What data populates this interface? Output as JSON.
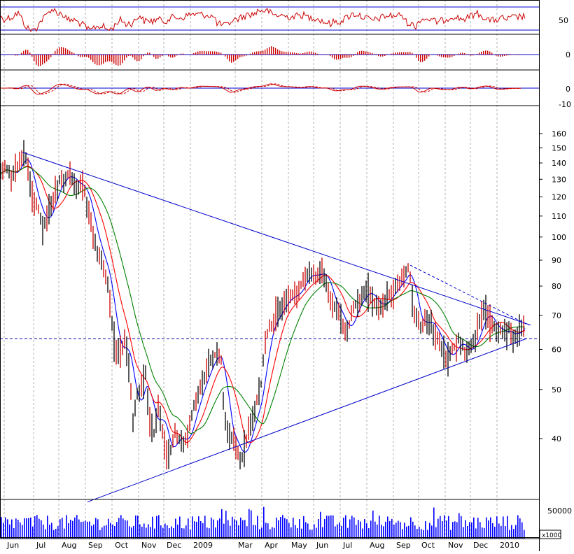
{
  "chart_data": {
    "type": "line",
    "price_axis_labels": [
      160,
      150,
      140,
      130,
      120,
      110,
      100,
      90,
      80,
      70,
      60,
      50,
      40
    ],
    "rsi_axis_labels": [
      50
    ],
    "macd_hist_axis_labels": [
      0
    ],
    "macd_axis_labels": [
      0,
      -10
    ],
    "volume_axis_label": "50000",
    "volume_unit_label": "x1000",
    "x_tick_labels": [
      "Jun",
      "Jul",
      "Aug",
      "Sep",
      "Oct",
      "Nov",
      "Dec",
      "2009",
      "Mar",
      "Apr",
      "May",
      "Jun",
      "Jul",
      "Aug",
      "Sep",
      "Oct",
      "Nov",
      "Dec",
      "2010"
    ],
    "horizontal_reference_level": 63,
    "closes": [
      [
        0,
        133
      ],
      [
        8,
        138
      ],
      [
        16,
        131
      ],
      [
        24,
        137
      ],
      [
        32,
        146
      ],
      [
        38,
        142
      ],
      [
        44,
        124
      ],
      [
        50,
        117
      ],
      [
        56,
        113
      ],
      [
        62,
        104
      ],
      [
        68,
        111
      ],
      [
        74,
        118
      ],
      [
        80,
        124
      ],
      [
        86,
        131
      ],
      [
        92,
        130
      ],
      [
        98,
        134
      ],
      [
        104,
        129
      ],
      [
        110,
        125
      ],
      [
        116,
        128
      ],
      [
        120,
        124
      ],
      [
        126,
        112
      ],
      [
        132,
        104
      ],
      [
        138,
        94
      ],
      [
        144,
        91
      ],
      [
        150,
        86
      ],
      [
        156,
        76
      ],
      [
        162,
        63
      ],
      [
        168,
        59
      ],
      [
        174,
        60
      ],
      [
        178,
        63
      ],
      [
        182,
        58
      ],
      [
        186,
        52
      ],
      [
        190,
        43
      ],
      [
        196,
        49
      ],
      [
        202,
        50
      ],
      [
        208,
        54
      ],
      [
        214,
        43
      ],
      [
        220,
        41
      ],
      [
        226,
        47
      ],
      [
        232,
        42
      ],
      [
        238,
        37
      ],
      [
        244,
        38
      ],
      [
        250,
        41
      ],
      [
        256,
        40
      ],
      [
        262,
        39
      ],
      [
        268,
        41
      ],
      [
        274,
        44
      ],
      [
        280,
        48
      ],
      [
        286,
        50
      ],
      [
        292,
        53
      ],
      [
        298,
        56
      ],
      [
        304,
        58
      ],
      [
        310,
        59
      ],
      [
        316,
        57
      ],
      [
        320,
        44
      ],
      [
        326,
        41
      ],
      [
        332,
        40
      ],
      [
        338,
        38
      ],
      [
        344,
        36
      ],
      [
        350,
        39
      ],
      [
        356,
        42
      ],
      [
        362,
        44
      ],
      [
        368,
        48
      ],
      [
        374,
        52
      ],
      [
        378,
        62
      ],
      [
        384,
        66
      ],
      [
        390,
        68
      ],
      [
        396,
        71
      ],
      [
        402,
        73
      ],
      [
        408,
        75
      ],
      [
        414,
        77
      ],
      [
        420,
        76
      ],
      [
        426,
        78
      ],
      [
        432,
        82
      ],
      [
        438,
        84
      ],
      [
        444,
        85
      ],
      [
        450,
        83
      ],
      [
        456,
        85
      ],
      [
        462,
        86
      ],
      [
        468,
        78
      ],
      [
        474,
        74
      ],
      [
        480,
        72
      ],
      [
        486,
        70
      ],
      [
        490,
        67
      ],
      [
        494,
        64
      ],
      [
        500,
        68
      ],
      [
        506,
        73
      ],
      [
        512,
        74
      ],
      [
        518,
        77
      ],
      [
        524,
        79
      ],
      [
        530,
        76
      ],
      [
        536,
        74
      ],
      [
        542,
        73
      ],
      [
        548,
        74
      ],
      [
        554,
        76
      ],
      [
        560,
        78
      ],
      [
        566,
        80
      ],
      [
        572,
        82
      ],
      [
        578,
        84
      ],
      [
        584,
        88
      ],
      [
        590,
        72
      ],
      [
        596,
        69
      ],
      [
        602,
        66
      ],
      [
        608,
        69
      ],
      [
        614,
        68
      ],
      [
        620,
        65
      ],
      [
        626,
        63
      ],
      [
        632,
        60
      ],
      [
        638,
        57
      ],
      [
        644,
        59
      ],
      [
        650,
        61
      ],
      [
        656,
        63
      ],
      [
        662,
        60
      ],
      [
        668,
        59
      ],
      [
        674,
        61
      ],
      [
        680,
        64
      ],
      [
        686,
        68
      ],
      [
        692,
        72
      ],
      [
        698,
        69
      ],
      [
        704,
        67
      ],
      [
        710,
        65
      ],
      [
        716,
        66
      ],
      [
        722,
        64
      ],
      [
        728,
        66
      ],
      [
        734,
        63
      ],
      [
        740,
        65
      ],
      [
        744,
        67
      ],
      [
        748,
        68
      ]
    ],
    "trendlines": [
      {
        "from": [
          32,
          147
        ],
        "to": [
          758,
          67
        ],
        "style": "solid"
      },
      {
        "from": [
          125,
          30
        ],
        "to": [
          752,
          63
        ],
        "style": "solid"
      },
      {
        "from": [
          586,
          88
        ],
        "to": [
          755,
          67
        ],
        "style": "dashed"
      }
    ],
    "legend": "none",
    "grid": "vertical dashed"
  }
}
